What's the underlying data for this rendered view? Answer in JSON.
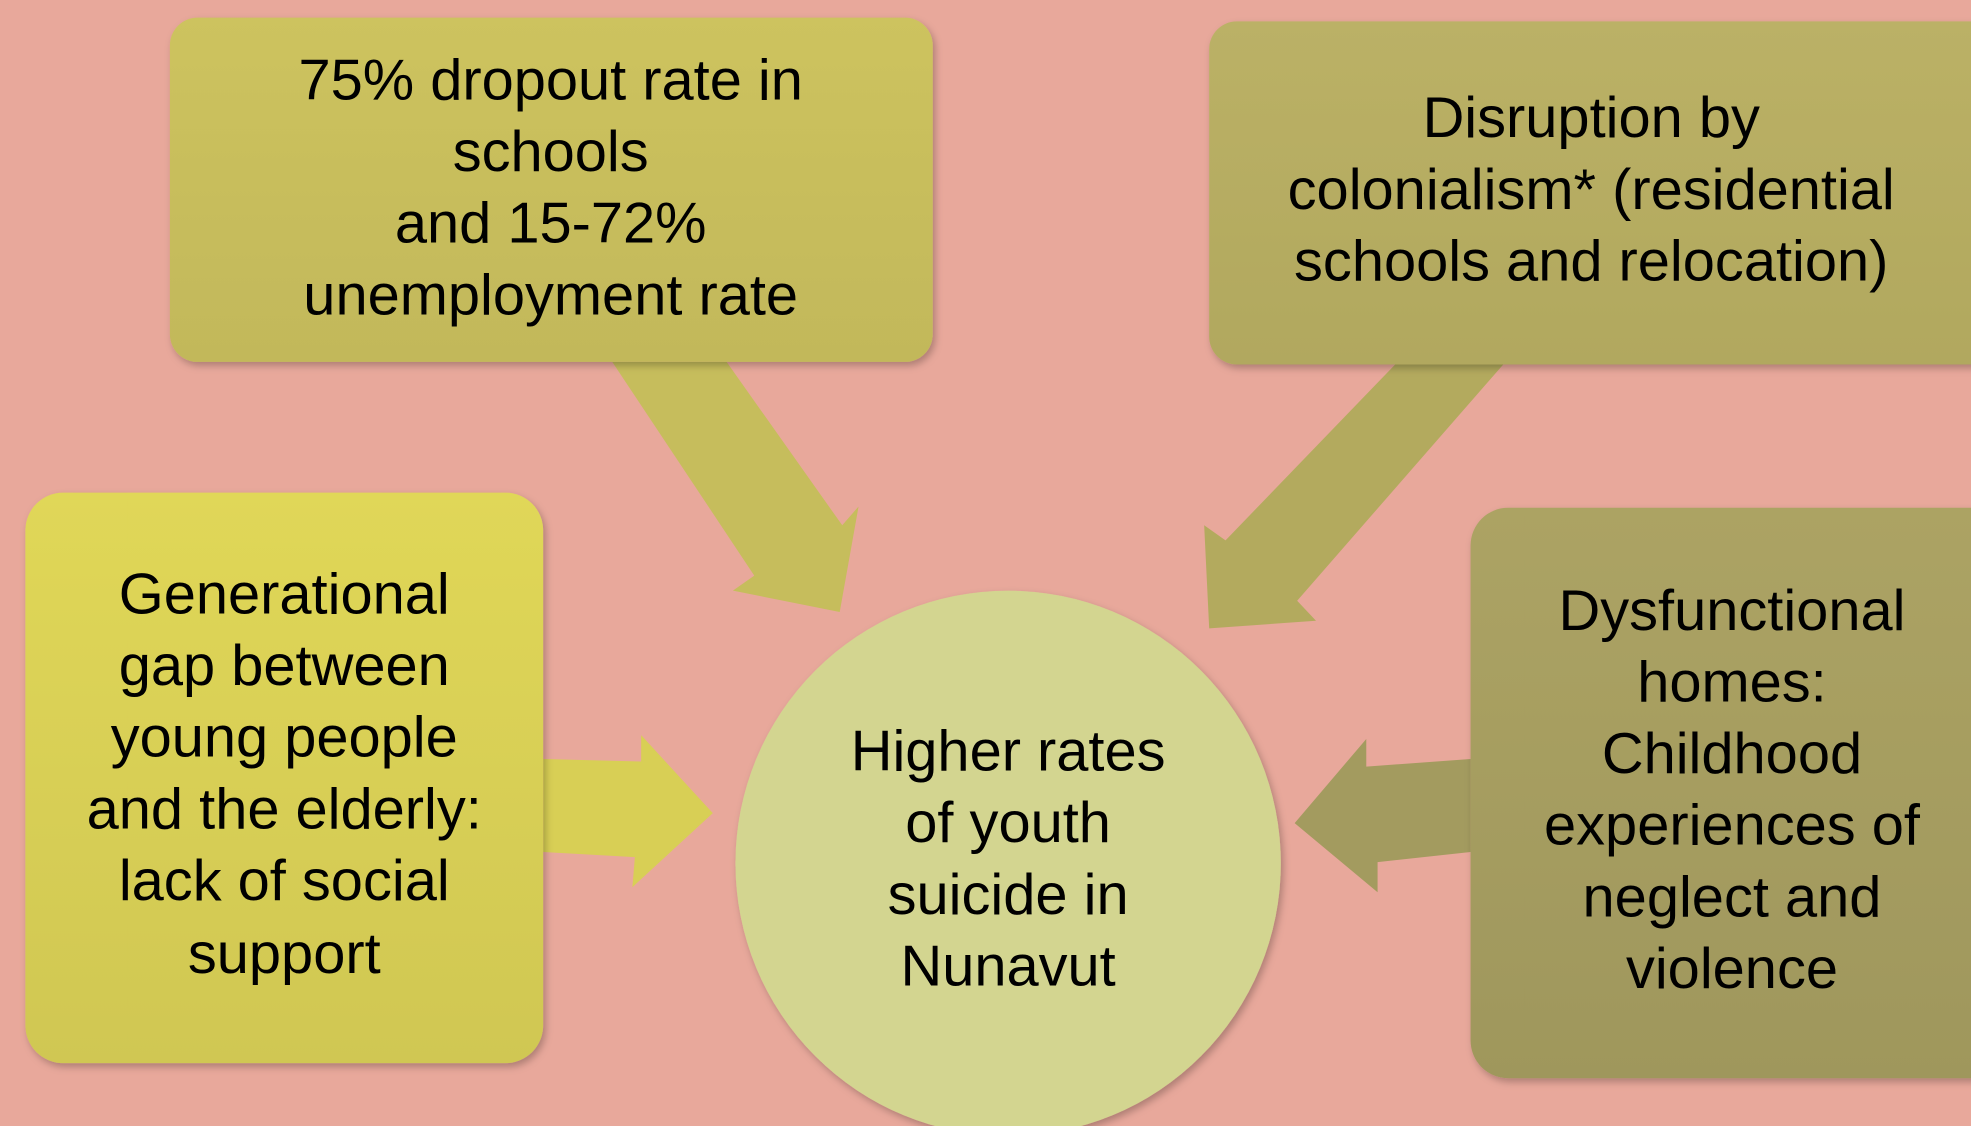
{
  "nodes": [
    {
      "lines": [
        "75% dropout rate in",
        "schools",
        "and 15-72%",
        "unemployment rate"
      ]
    },
    {
      "lines": [
        "Disruption by",
        "colonialism* (residential",
        "schools and relocation)"
      ]
    },
    {
      "lines": [
        "Generational",
        "gap between",
        "young people",
        "and the elderly:",
        "lack of social",
        "support"
      ]
    },
    {
      "lines": [
        "Dysfunctional",
        "homes:",
        "Childhood",
        "experiences of",
        "neglect and",
        "violence"
      ]
    },
    {
      "lines": [
        "Higher rates",
        "of youth",
        "suicide in",
        "Nunavut"
      ]
    }
  ]
}
